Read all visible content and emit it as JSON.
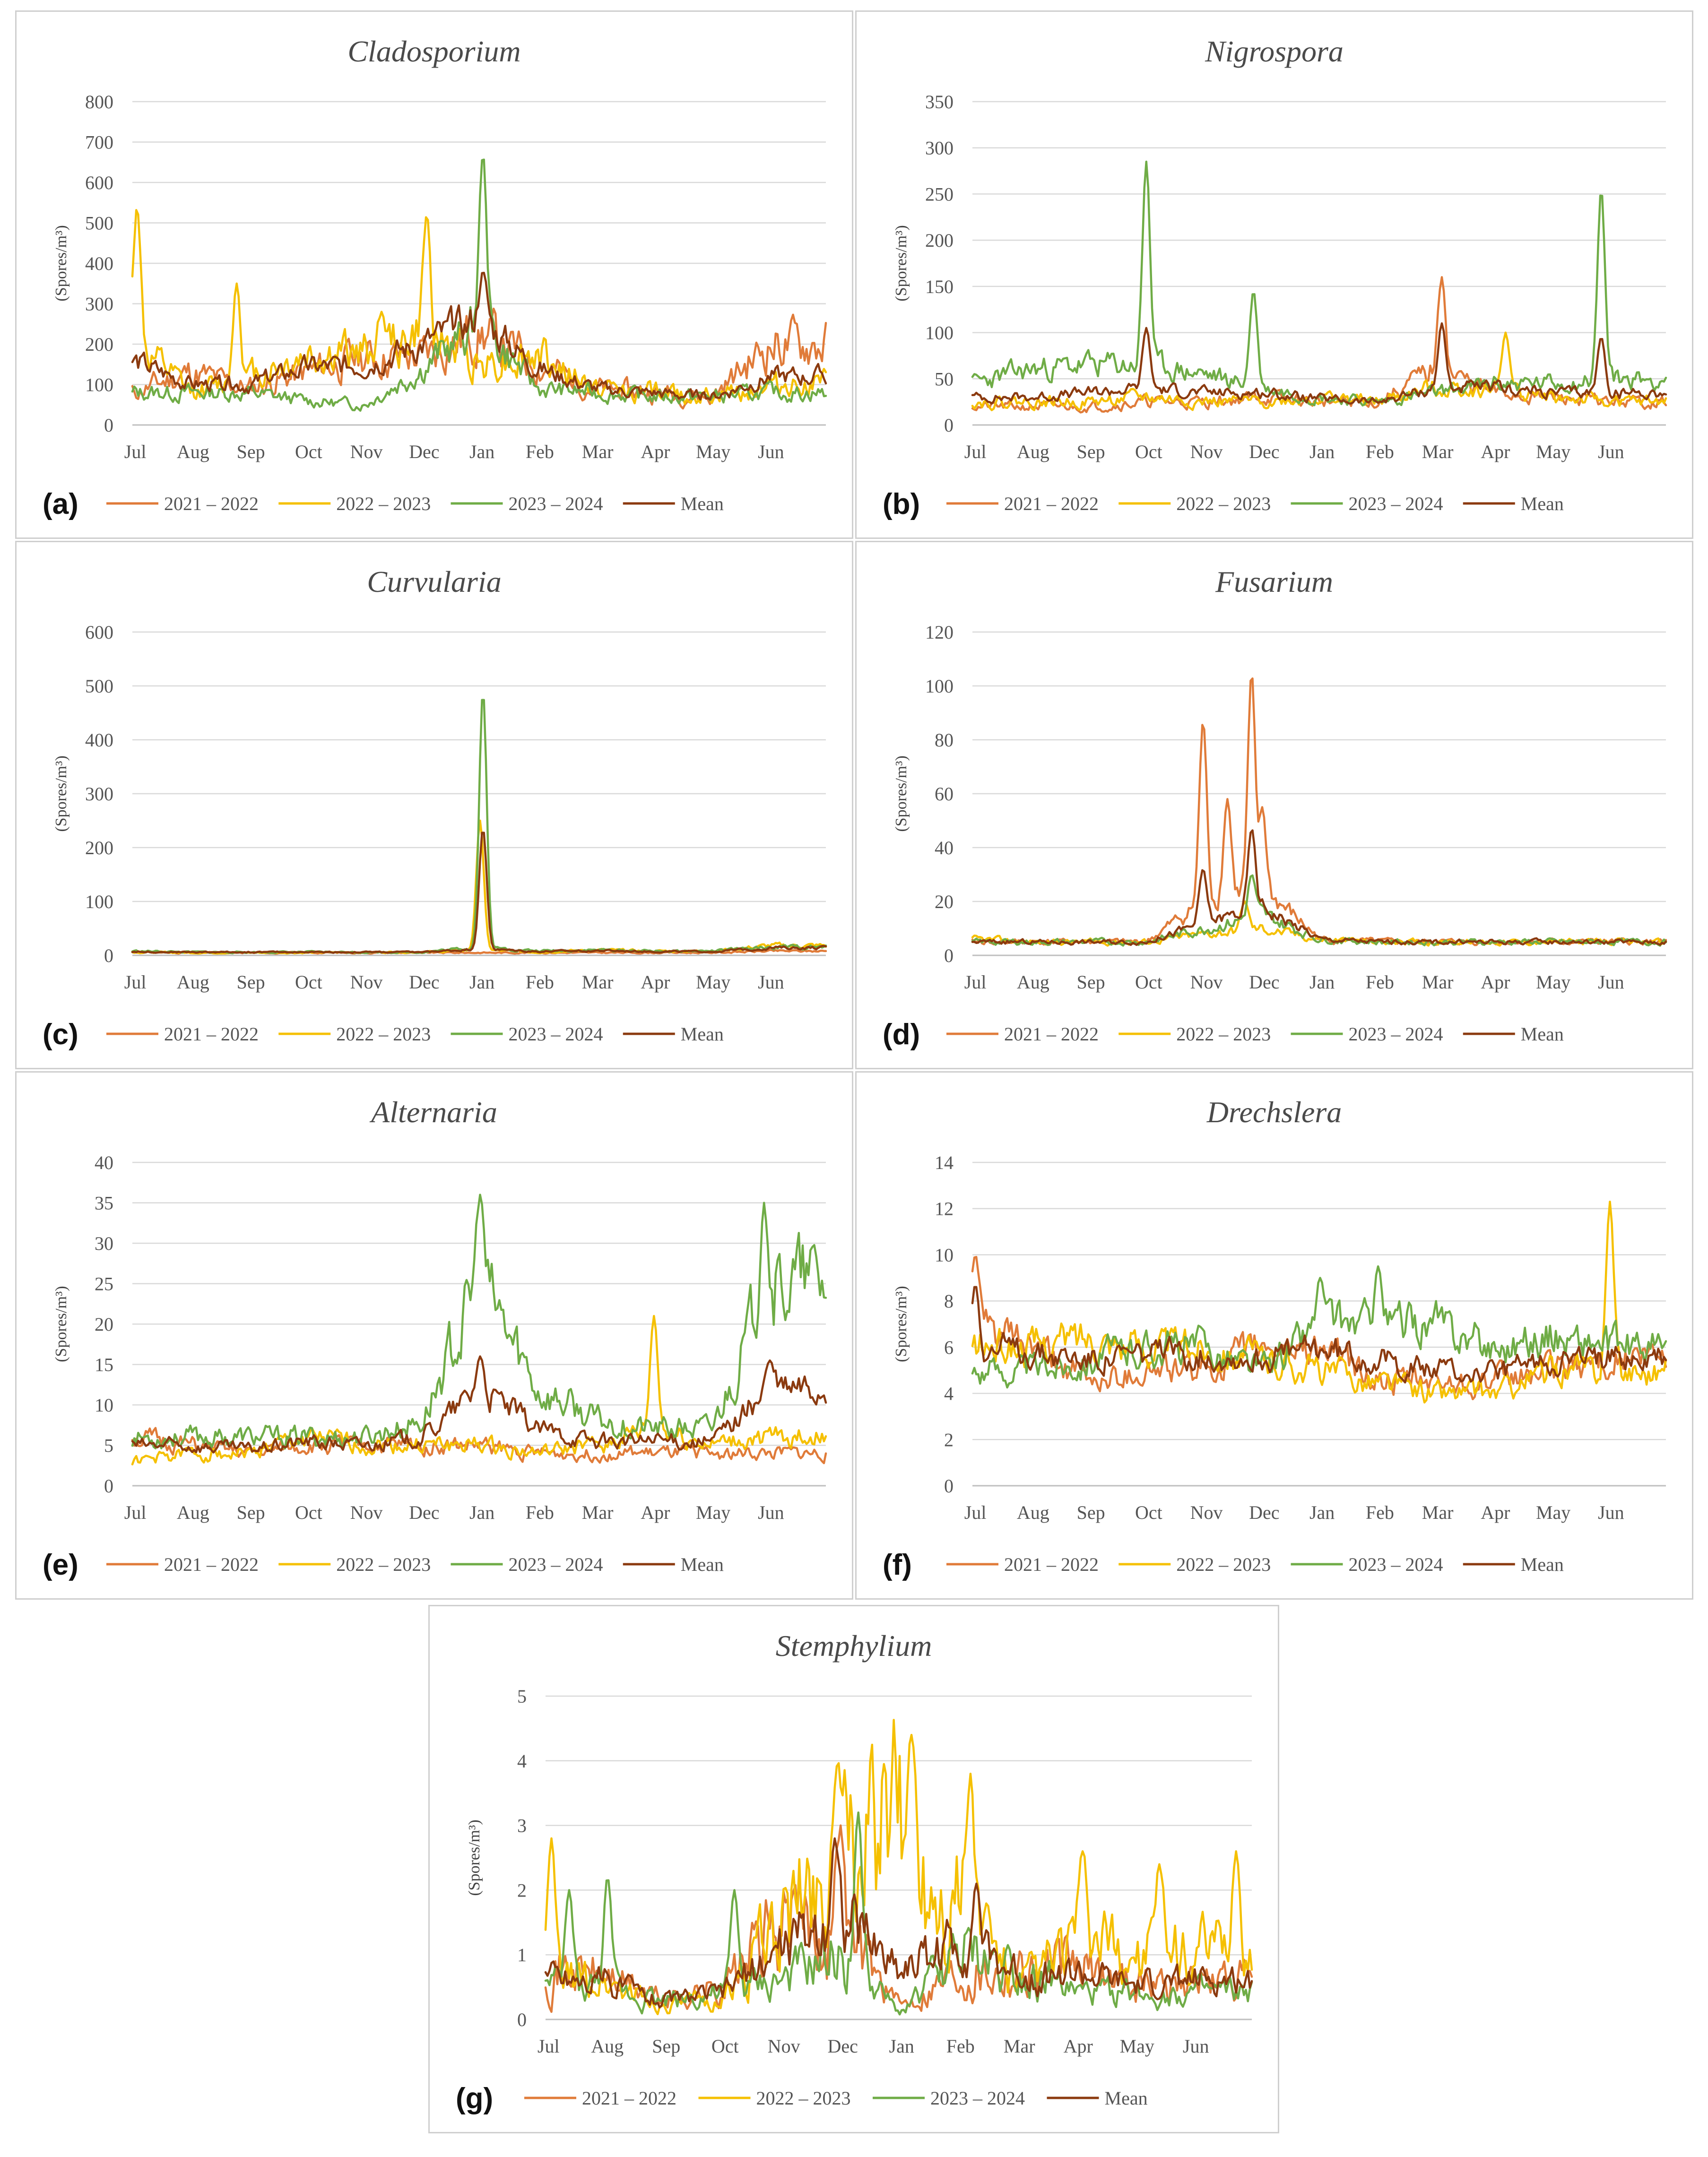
{
  "colors": {
    "s2021": "#e07b39",
    "s2022": "#f5c000",
    "s2023": "#6fac46",
    "mean": "#8b3a0f"
  },
  "chart_data": [
    {
      "id": "a",
      "letter": "(a)",
      "type": "line",
      "title": "Cladosporium",
      "ylabel": "(Spores/m³)",
      "ylim": [
        0,
        800
      ],
      "ystep": 100,
      "ytick_labels": [
        "0",
        "100",
        "200",
        "300",
        "400",
        "500",
        "600",
        "700",
        "800"
      ],
      "x_labels": [
        "Jul",
        "Aug",
        "Sep",
        "Oct",
        "Nov",
        "Dec",
        "Jan",
        "Feb",
        "Mar",
        "Apr",
        "May",
        "Jun"
      ],
      "legend": [
        "2021 – 2022",
        "2022 – 2023",
        "2023 – 2024",
        "Mean"
      ],
      "series": [
        {
          "name": "2021 – 2022",
          "key": "s2021",
          "noise": 0.35,
          "seed": 11,
          "base": [
            80,
            130,
            90,
            130,
            170,
            170,
            230,
            150,
            90,
            80,
            70,
            200
          ],
          "peaks": []
        },
        {
          "name": "2022 – 2023",
          "key": "s2022",
          "noise": 0.35,
          "seed": 12,
          "base": [
            200,
            80,
            120,
            170,
            180,
            220,
            160,
            170,
            90,
            80,
            70,
            100
          ],
          "peaks": [
            [
              0.08,
              540
            ],
            [
              1.8,
              350
            ],
            [
              4.3,
              280
            ],
            [
              5.08,
              520
            ]
          ]
        },
        {
          "name": "2023 – 2024",
          "key": "s2023",
          "noise": 0.3,
          "seed": 13,
          "base": [
            80,
            80,
            80,
            60,
            50,
            140,
            250,
            90,
            80,
            70,
            70,
            80
          ],
          "peaks": [
            [
              6.05,
              670
            ]
          ]
        },
        {
          "name": "Mean",
          "key": "mean",
          "noise": 0.22,
          "seed": 14,
          "base": [
            160,
            100,
            100,
            140,
            150,
            200,
            260,
            140,
            90,
            80,
            70,
            120
          ],
          "peaks": [
            [
              6.05,
              380
            ]
          ]
        }
      ]
    },
    {
      "id": "b",
      "letter": "(b)",
      "type": "line",
      "title": "Nigrospora",
      "ylabel": "(Spores/m³)",
      "ylim": [
        0,
        350
      ],
      "ystep": 50,
      "ytick_labels": [
        "0",
        "50",
        "100",
        "150",
        "200",
        "250",
        "300",
        "350"
      ],
      "x_labels": [
        "Jul",
        "Aug",
        "Sep",
        "Oct",
        "Nov",
        "Dec",
        "Jan",
        "Feb",
        "Mar",
        "Apr",
        "May",
        "Jun"
      ],
      "legend": [
        "2021 – 2022",
        "2022 – 2023",
        "2023 – 2024",
        "Mean"
      ],
      "series": [
        {
          "name": "2021 – 2022",
          "key": "s2021",
          "noise": 0.3,
          "seed": 21,
          "base": [
            20,
            20,
            20,
            25,
            25,
            30,
            25,
            25,
            60,
            35,
            30,
            25
          ],
          "peaks": [
            [
              8.1,
              160
            ]
          ]
        },
        {
          "name": "2022 – 2023",
          "key": "s2022",
          "noise": 0.3,
          "seed": 22,
          "base": [
            25,
            25,
            25,
            30,
            25,
            25,
            30,
            25,
            40,
            40,
            30,
            25
          ],
          "peaks": [
            [
              9.2,
              100
            ]
          ]
        },
        {
          "name": "2023 – 2024",
          "key": "s2023",
          "noise": 0.25,
          "seed": 23,
          "base": [
            45,
            60,
            65,
            65,
            55,
            40,
            30,
            25,
            35,
            45,
            45,
            50
          ],
          "peaks": [
            [
              3.0,
              285
            ],
            [
              4.85,
              145
            ],
            [
              10.85,
              255
            ]
          ]
        },
        {
          "name": "Mean",
          "key": "mean",
          "noise": 0.2,
          "seed": 24,
          "base": [
            30,
            30,
            35,
            40,
            35,
            35,
            28,
            25,
            40,
            40,
            35,
            35
          ],
          "peaks": [
            [
              3.0,
              105
            ],
            [
              8.1,
              110
            ],
            [
              10.85,
              95
            ]
          ]
        }
      ]
    },
    {
      "id": "c",
      "letter": "(c)",
      "type": "line",
      "title": "Curvularia",
      "ylabel": "(Spores/m³)",
      "ylim": [
        0,
        600
      ],
      "ystep": 100,
      "ytick_labels": [
        "0",
        "100",
        "200",
        "300",
        "400",
        "500",
        "600"
      ],
      "x_labels": [
        "Jul",
        "Aug",
        "Sep",
        "Oct",
        "Nov",
        "Dec",
        "Jan",
        "Feb",
        "Mar",
        "Apr",
        "May",
        "Jun"
      ],
      "legend": [
        "2021 – 2022",
        "2022 – 2023",
        "2023 – 2024",
        "Mean"
      ],
      "series": [
        {
          "name": "2021 – 2022",
          "key": "s2021",
          "noise": 0.3,
          "seed": 31,
          "base": [
            6,
            5,
            5,
            5,
            5,
            5,
            5,
            5,
            5,
            5,
            5,
            8
          ],
          "peaks": []
        },
        {
          "name": "2022 – 2023",
          "key": "s2022",
          "noise": 0.3,
          "seed": 32,
          "base": [
            6,
            5,
            5,
            5,
            6,
            6,
            10,
            6,
            10,
            8,
            8,
            18
          ],
          "peaks": [
            [
              6.0,
              250
            ]
          ]
        },
        {
          "name": "2023 – 2024",
          "key": "s2023",
          "noise": 0.3,
          "seed": 33,
          "base": [
            8,
            6,
            6,
            6,
            6,
            6,
            15,
            8,
            10,
            8,
            8,
            15
          ],
          "peaks": [
            [
              6.05,
              490
            ]
          ]
        },
        {
          "name": "Mean",
          "key": "mean",
          "noise": 0.25,
          "seed": 34,
          "base": [
            7,
            6,
            6,
            6,
            6,
            6,
            12,
            7,
            9,
            7,
            7,
            14
          ],
          "peaks": [
            [
              6.05,
              235
            ]
          ]
        }
      ]
    },
    {
      "id": "d",
      "letter": "(d)",
      "type": "line",
      "title": "Fusarium",
      "ylabel": "(Spores/m³)",
      "ylim": [
        0,
        120
      ],
      "ystep": 20,
      "ytick_labels": [
        "0",
        "20",
        "40",
        "60",
        "80",
        "100",
        "120"
      ],
      "x_labels": [
        "Jul",
        "Aug",
        "Sep",
        "Oct",
        "Nov",
        "Dec",
        "Jan",
        "Feb",
        "Mar",
        "Apr",
        "May",
        "Jun"
      ],
      "legend": [
        "2021 – 2022",
        "2022 – 2023",
        "2023 – 2024",
        "Mean"
      ],
      "series": [
        {
          "name": "2021 – 2022",
          "key": "s2021",
          "noise": 0.25,
          "seed": 41,
          "base": [
            5,
            5,
            5,
            5,
            20,
            25,
            6,
            5,
            5,
            5,
            5,
            5
          ],
          "peaks": [
            [
              3.98,
              87
            ],
            [
              4.4,
              58
            ],
            [
              4.82,
              106
            ],
            [
              5.0,
              55
            ]
          ]
        },
        {
          "name": "2022 – 2023",
          "key": "s2022",
          "noise": 0.25,
          "seed": 42,
          "base": [
            6,
            5,
            5,
            5,
            8,
            10,
            6,
            5,
            5,
            5,
            5,
            5
          ],
          "peaks": [
            [
              4.7,
              20
            ]
          ]
        },
        {
          "name": "2023 – 2024",
          "key": "s2023",
          "noise": 0.25,
          "seed": 43,
          "base": [
            5,
            5,
            5,
            5,
            10,
            15,
            6,
            5,
            5,
            5,
            5,
            5
          ],
          "peaks": [
            [
              4.82,
              30
            ]
          ]
        },
        {
          "name": "Mean",
          "key": "mean",
          "noise": 0.2,
          "seed": 44,
          "base": [
            5,
            5,
            5,
            5,
            12,
            18,
            6,
            5,
            5,
            5,
            5,
            5
          ],
          "peaks": [
            [
              3.98,
              32
            ],
            [
              4.82,
              47
            ]
          ]
        }
      ]
    },
    {
      "id": "e",
      "letter": "(e)",
      "type": "line",
      "title": "Alternaria",
      "ylabel": "(Spores/m³)",
      "ylim": [
        0,
        40
      ],
      "ystep": 5,
      "ytick_labels": [
        "0",
        "5",
        "10",
        "15",
        "20",
        "25",
        "30",
        "35",
        "40"
      ],
      "x_labels": [
        "Jul",
        "Aug",
        "Sep",
        "Oct",
        "Nov",
        "Dec",
        "Jan",
        "Feb",
        "Mar",
        "Apr",
        "May",
        "Jun"
      ],
      "legend": [
        "2021 – 2022",
        "2022 – 2023",
        "2023 – 2024",
        "Mean"
      ],
      "series": [
        {
          "name": "2021 – 2022",
          "key": "s2021",
          "noise": 0.25,
          "seed": 51,
          "base": [
            6,
            5,
            4,
            5,
            5,
            5,
            5,
            4,
            4,
            4,
            4,
            4
          ],
          "peaks": []
        },
        {
          "name": "2022 – 2023",
          "key": "s2022",
          "noise": 0.25,
          "seed": 52,
          "base": [
            3,
            4,
            4,
            6,
            5,
            5,
            5,
            4,
            5,
            7,
            5,
            6
          ],
          "peaks": [
            [
              9.0,
              21
            ]
          ]
        },
        {
          "name": "2023 – 2024",
          "key": "s2023",
          "noise": 0.25,
          "seed": 53,
          "base": [
            6,
            6,
            6,
            6,
            6,
            8,
            25,
            12,
            8,
            7,
            7,
            25
          ],
          "peaks": [
            [
              6.0,
              36
            ],
            [
              10.9,
              35
            ]
          ]
        },
        {
          "name": "Mean",
          "key": "mean",
          "noise": 0.2,
          "seed": 54,
          "base": [
            5,
            5,
            4.5,
            5.5,
            5,
            6,
            12,
            7,
            5.5,
            5.5,
            5.5,
            12
          ],
          "peaks": [
            [
              6.0,
              16
            ],
            [
              11.0,
              15.5
            ]
          ]
        }
      ]
    },
    {
      "id": "f",
      "letter": "(f)",
      "type": "line",
      "title": "Drechslera",
      "ylabel": "(Spores/m³)",
      "ylim": [
        0,
        14
      ],
      "ystep": 2,
      "ytick_labels": [
        "0",
        "2",
        "4",
        "6",
        "8",
        "10",
        "12",
        "14"
      ],
      "x_labels": [
        "Jul",
        "Aug",
        "Sep",
        "Oct",
        "Nov",
        "Dec",
        "Jan",
        "Feb",
        "Mar",
        "Apr",
        "May",
        "Jun"
      ],
      "legend": [
        "2021 – 2022",
        "2022 – 2023",
        "2023 – 2024",
        "Mean"
      ],
      "series": [
        {
          "name": "2021 – 2022",
          "key": "s2021",
          "noise": 0.15,
          "seed": 61,
          "base": [
            7,
            6,
            4.5,
            5,
            5,
            6,
            6,
            4.5,
            4.5,
            4.5,
            5,
            5.5
          ],
          "peaks": [
            [
              0.05,
              10
            ]
          ]
        },
        {
          "name": "2022 – 2023",
          "key": "s2022",
          "noise": 0.15,
          "seed": 62,
          "base": [
            6,
            6,
            6.5,
            6,
            6,
            5.5,
            5,
            4.5,
            4,
            4,
            5,
            5
          ],
          "peaks": [
            [
              11.0,
              12.3
            ]
          ]
        },
        {
          "name": "2023 – 2024",
          "key": "s2023",
          "noise": 0.15,
          "seed": 63,
          "base": [
            5,
            5,
            5.5,
            6,
            6,
            5,
            7,
            7,
            7,
            6,
            6.5,
            6
          ],
          "peaks": [
            [
              6.0,
              9
            ],
            [
              7.0,
              9.5
            ]
          ]
        },
        {
          "name": "Mean",
          "key": "mean",
          "noise": 0.12,
          "seed": 64,
          "base": [
            6,
            5.8,
            5.5,
            5.7,
            5.7,
            5.5,
            6,
            5.5,
            5,
            4.8,
            5.5,
            5.5
          ],
          "peaks": [
            [
              0.05,
              8.7
            ]
          ]
        }
      ]
    },
    {
      "id": "g",
      "letter": "(g)",
      "type": "line",
      "title": "Stemphylium",
      "ylabel": "(Spores/m³)",
      "ylim": [
        0,
        5
      ],
      "ystep": 1,
      "ytick_labels": [
        "0",
        "1",
        "2",
        "3",
        "4",
        "5"
      ],
      "x_labels": [
        "Jul",
        "Aug",
        "Sep",
        "Oct",
        "Nov",
        "Dec",
        "Jan",
        "Feb",
        "Mar",
        "Apr",
        "May",
        "Jun"
      ],
      "legend": [
        "2021 – 2022",
        "2022 – 2023",
        "2023 – 2024",
        "Mean"
      ],
      "series": [
        {
          "name": "2021 – 2022",
          "key": "s2021",
          "noise": 0.6,
          "seed": 71,
          "base": [
            0.8,
            0.7,
            0.3,
            0.5,
            1.5,
            1.5,
            0.2,
            0.8,
            0.8,
            0.8,
            0.6,
            0.6
          ],
          "peaks": [
            [
              5.0,
              3.0
            ]
          ]
        },
        {
          "name": "2022 – 2023",
          "key": "s2022",
          "noise": 0.6,
          "seed": 72,
          "base": [
            0.6,
            0.6,
            0.2,
            0.3,
            1.5,
            2.5,
            3.0,
            2.0,
            0.5,
            1.2,
            1.0,
            1.0
          ],
          "peaks": [
            [
              0.1,
              2.8
            ],
            [
              4.95,
              4.0
            ],
            [
              6.2,
              4.4
            ],
            [
              7.2,
              3.8
            ],
            [
              9.1,
              2.6
            ],
            [
              10.4,
              2.4
            ],
            [
              11.7,
              2.6
            ]
          ]
        },
        {
          "name": "2023 – 2024",
          "key": "s2023",
          "noise": 0.6,
          "seed": 73,
          "base": [
            0.5,
            0.5,
            0.3,
            0.4,
            0.6,
            1.0,
            0.1,
            1.0,
            0.8,
            0.4,
            0.4,
            0.4
          ],
          "peaks": [
            [
              0.4,
              2.0
            ],
            [
              1.05,
              2.2
            ],
            [
              3.2,
              2.0
            ],
            [
              5.3,
              3.2
            ]
          ]
        },
        {
          "name": "Mean",
          "key": "mean",
          "noise": 0.45,
          "seed": 74,
          "base": [
            0.7,
            0.6,
            0.3,
            0.4,
            1.1,
            1.6,
            0.8,
            1.2,
            0.7,
            0.7,
            0.5,
            0.6
          ],
          "peaks": [
            [
              4.9,
              2.8
            ],
            [
              7.3,
              2.1
            ]
          ]
        }
      ]
    }
  ]
}
